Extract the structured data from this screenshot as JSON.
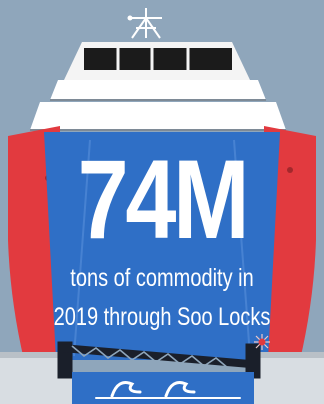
{
  "infographic": {
    "headline_value": "74M",
    "caption_line_1": "tons of commodity in",
    "caption_line_2": "2019 through Soo Locks"
  },
  "colors": {
    "sky": "#8fa6bb",
    "hull_blue": "#2f6fc6",
    "hull_red": "#e23a3f",
    "superstructure": "#ffffff",
    "window_band": "#1b1b1b",
    "crane": "#1a1f2a",
    "lock_wall": "#d8dde2",
    "water": "#2f6fc6"
  }
}
